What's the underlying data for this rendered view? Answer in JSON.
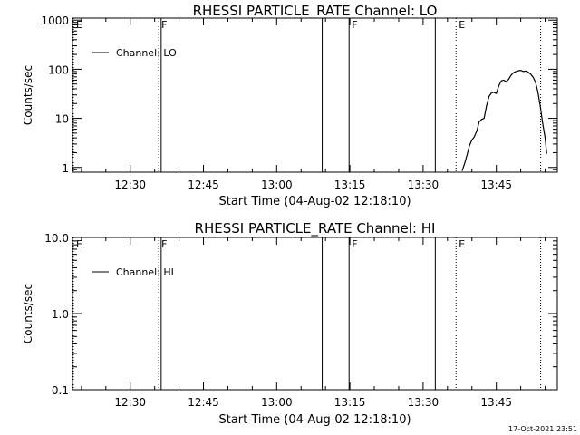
{
  "timestamp": "17-Oct-2021 23:51",
  "chart_data": [
    {
      "type": "line",
      "title": "RHESSI PARTICLE_RATE Channel: LO",
      "xlabel": "Start Time (04-Aug-02 12:18:10)",
      "ylabel": "Counts/sec",
      "yscale": "log",
      "xlim": [
        "12:18:10",
        "13:57:30"
      ],
      "ylim": [
        0.8,
        1100
      ],
      "xticks": [
        "12:30",
        "12:45",
        "13:00",
        "13:15",
        "13:30",
        "13:45"
      ],
      "yticks": [
        {
          "value": 1,
          "label": "1"
        },
        {
          "value": 10,
          "label": "10"
        },
        {
          "value": 100,
          "label": "100"
        },
        {
          "value": 1000,
          "label": "1000"
        }
      ],
      "grid": false,
      "legend_position": "top-left",
      "series": [
        {
          "name": "Channel: LO",
          "x": [
            "13:38:00",
            "13:38:30",
            "13:39:00",
            "13:39:30",
            "13:40:00",
            "13:40:30",
            "13:41:00",
            "13:41:30",
            "13:42:00",
            "13:42:30",
            "13:43:00",
            "13:43:30",
            "13:44:00",
            "13:44:30",
            "13:45:00",
            "13:45:30",
            "13:46:00",
            "13:46:30",
            "13:47:00",
            "13:47:30",
            "13:48:00",
            "13:48:30",
            "13:49:00",
            "13:49:30",
            "13:50:00",
            "13:50:30",
            "13:51:00",
            "13:51:30",
            "13:52:00",
            "13:52:30",
            "13:53:00",
            "13:53:30",
            "13:54:00",
            "13:54:30",
            "13:55:00",
            "13:55:20"
          ],
          "values": [
            0.85,
            1.2,
            1.8,
            2.8,
            3.6,
            4.2,
            5.5,
            8.5,
            9.5,
            10,
            18,
            28,
            33,
            34,
            32,
            46,
            58,
            60,
            56,
            62,
            75,
            85,
            90,
            93,
            95,
            90,
            92,
            88,
            80,
            70,
            55,
            35,
            18,
            8,
            4,
            1.9
          ]
        }
      ],
      "markers": [
        {
          "label": "E",
          "time": "12:18:10",
          "style": "dotted"
        },
        {
          "label": "F",
          "time": "12:35:50",
          "style": "dotted"
        },
        {
          "label": "",
          "time": "12:36:20",
          "style": "solid"
        },
        {
          "label": "",
          "time": "13:09:20",
          "style": "solid"
        },
        {
          "label": "F",
          "time": "13:14:50",
          "style": "solid"
        },
        {
          "label": "",
          "time": "13:32:30",
          "style": "solid"
        },
        {
          "label": "E",
          "time": "13:36:45",
          "style": "dotted"
        },
        {
          "label": "",
          "time": "13:54:05",
          "style": "dotted"
        }
      ]
    },
    {
      "type": "line",
      "title": "RHESSI PARTICLE_RATE Channel: HI",
      "xlabel": "Start Time (04-Aug-02 12:18:10)",
      "ylabel": "Counts/sec",
      "yscale": "log",
      "xlim": [
        "12:18:10",
        "13:57:30"
      ],
      "ylim": [
        0.1,
        10
      ],
      "xticks": [
        "12:30",
        "12:45",
        "13:00",
        "13:15",
        "13:30",
        "13:45"
      ],
      "yticks": [
        {
          "value": 0.1,
          "label": "0.1"
        },
        {
          "value": 1,
          "label": "1.0"
        },
        {
          "value": 10,
          "label": "10.0"
        }
      ],
      "grid": false,
      "legend_position": "top-left",
      "series": [
        {
          "name": "Channel: HI",
          "x": [],
          "values": []
        }
      ],
      "markers": [
        {
          "label": "E",
          "time": "12:18:10",
          "style": "dotted"
        },
        {
          "label": "F",
          "time": "12:35:50",
          "style": "dotted"
        },
        {
          "label": "",
          "time": "12:36:20",
          "style": "solid"
        },
        {
          "label": "",
          "time": "13:09:20",
          "style": "solid"
        },
        {
          "label": "F",
          "time": "13:14:50",
          "style": "solid"
        },
        {
          "label": "",
          "time": "13:32:30",
          "style": "solid"
        },
        {
          "label": "E",
          "time": "13:36:45",
          "style": "dotted"
        },
        {
          "label": "",
          "time": "13:54:05",
          "style": "dotted"
        }
      ]
    }
  ]
}
